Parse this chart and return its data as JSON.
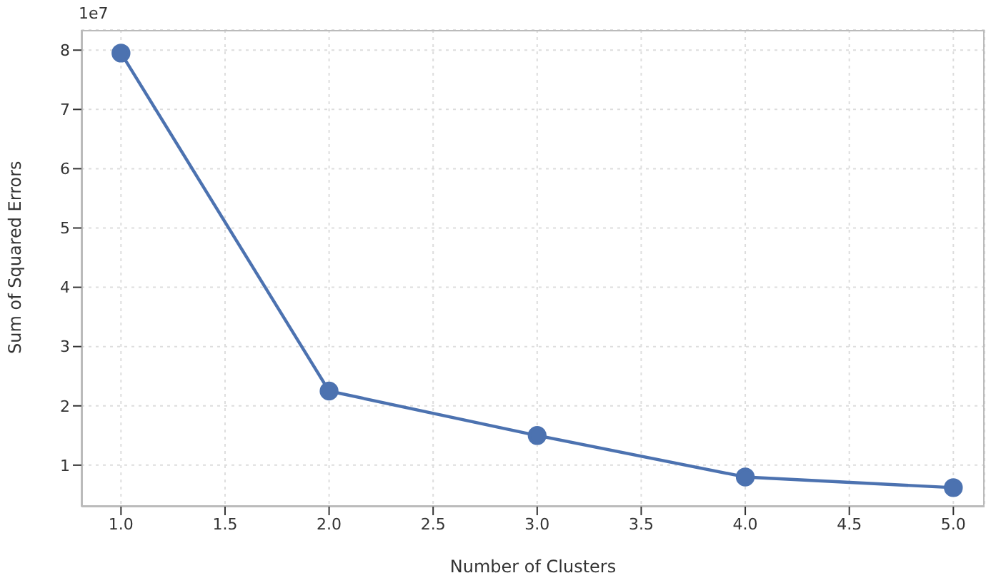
{
  "chart_data": {
    "type": "line",
    "xlabel": "Number of Clusters",
    "ylabel": "Sum of Squared Errors",
    "annotations": [
      "1e7"
    ],
    "x": [
      1,
      2,
      3,
      4,
      5
    ],
    "series": [
      {
        "color": "#4c72b0",
        "values": [
          7.95,
          2.25,
          1.5,
          0.8,
          0.62
        ]
      }
    ],
    "xlim": [
      0.81,
      5.15
    ],
    "xticks": [
      {
        "value": 1,
        "label": "1.0"
      },
      {
        "value": 1.5,
        "label": "1.5"
      },
      {
        "value": 2,
        "label": "2.0"
      },
      {
        "value": 2.5,
        "label": "2.5"
      },
      {
        "value": 3,
        "label": "3.0"
      },
      {
        "value": 3.5,
        "label": "3.5"
      },
      {
        "value": 4,
        "label": "4.0"
      },
      {
        "value": 4.5,
        "label": "4.5"
      },
      {
        "value": 5,
        "label": "5.0"
      }
    ],
    "ylim": [
      0.3,
      8.34
    ],
    "yticks": [
      1,
      2,
      3,
      4,
      5,
      6,
      7,
      8
    ],
    "grid": true,
    "marker": "circle",
    "line_style": "solid",
    "legend": false
  }
}
